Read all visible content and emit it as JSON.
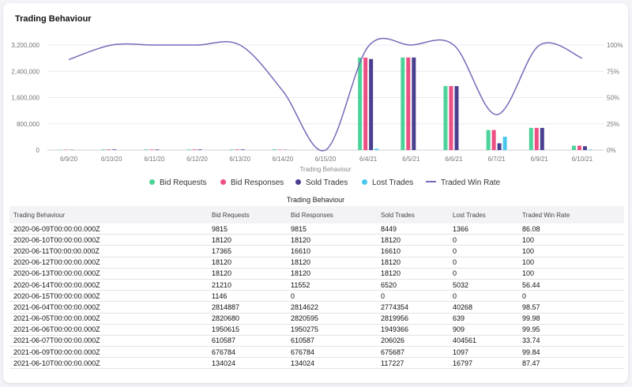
{
  "card": {
    "title": "Trading Behaviour"
  },
  "chart_data": {
    "type": "bar",
    "categories": [
      "6/9/20",
      "6/10/20",
      "6/11/20",
      "6/12/20",
      "6/13/20",
      "6/14/20",
      "6/15/20",
      "6/4/21",
      "6/5/21",
      "6/6/21",
      "6/7/21",
      "6/9/21",
      "6/10/21"
    ],
    "xlabel": "Trading Behaviour",
    "ylim": [
      0,
      3200000
    ],
    "y_ticks": [
      "0",
      "800,000",
      "1,600,000",
      "2,400,000",
      "3,200,000"
    ],
    "y2lim": [
      0,
      100
    ],
    "y2_ticks": [
      "0%",
      "25%",
      "50%",
      "75%",
      "100%"
    ],
    "series": [
      {
        "name": "Bid Requests",
        "type": "bar",
        "axis": "left",
        "color": "#4cd39a",
        "values": [
          9815,
          18120,
          17365,
          18120,
          18120,
          21210,
          1146,
          2814887,
          2820680,
          1950615,
          610587,
          676784,
          134024
        ]
      },
      {
        "name": "Bid Responses",
        "type": "bar",
        "axis": "left",
        "color": "#ec4f83",
        "values": [
          9815,
          18120,
          16610,
          18120,
          18120,
          11552,
          0,
          2814622,
          2820595,
          1950275,
          610587,
          676784,
          134024
        ]
      },
      {
        "name": "Sold Trades",
        "type": "bar",
        "axis": "left",
        "color": "#4a3f8f",
        "values": [
          8449,
          18120,
          16610,
          18120,
          18120,
          6520,
          0,
          2774354,
          2819956,
          1949366,
          206026,
          675687,
          117227
        ]
      },
      {
        "name": "Lost Trades",
        "type": "bar",
        "axis": "left",
        "color": "#49c7ec",
        "values": [
          1366,
          0,
          0,
          0,
          0,
          5032,
          0,
          40268,
          639,
          909,
          404561,
          1097,
          16797
        ]
      },
      {
        "name": "Traded Win Rate",
        "type": "line",
        "axis": "right",
        "color": "#7a68b8",
        "values": [
          86.08,
          100,
          100,
          100,
          100,
          56.44,
          0,
          98.57,
          99.98,
          99.95,
          33.74,
          99.84,
          87.47
        ]
      }
    ],
    "grid": true,
    "legend_position": "bottom"
  },
  "table": {
    "title": "Trading Behaviour",
    "headers": [
      "Trading Behaviour",
      "Bid Requests",
      "Bid Responses",
      "Sold Trades",
      "Lost Trades",
      "Traded Win Rate"
    ],
    "rows": [
      [
        "2020-06-09T00:00:00.000Z",
        "9815",
        "9815",
        "8449",
        "1366",
        "86.08"
      ],
      [
        "2020-06-10T00:00:00.000Z",
        "18120",
        "18120",
        "18120",
        "0",
        "100"
      ],
      [
        "2020-06-11T00:00:00.000Z",
        "17365",
        "16610",
        "16610",
        "0",
        "100"
      ],
      [
        "2020-06-12T00:00:00.000Z",
        "18120",
        "18120",
        "18120",
        "0",
        "100"
      ],
      [
        "2020-06-13T00:00:00.000Z",
        "18120",
        "18120",
        "18120",
        "0",
        "100"
      ],
      [
        "2020-06-14T00:00:00.000Z",
        "21210",
        "11552",
        "6520",
        "5032",
        "56.44"
      ],
      [
        "2020-06-15T00:00:00.000Z",
        "1146",
        "0",
        "0",
        "0",
        "0"
      ],
      [
        "2021-06-04T00:00:00.000Z",
        "2814887",
        "2814622",
        "2774354",
        "40268",
        "98.57"
      ],
      [
        "2021-06-05T00:00:00.000Z",
        "2820680",
        "2820595",
        "2819956",
        "639",
        "99.98"
      ],
      [
        "2021-06-06T00:00:00.000Z",
        "1950615",
        "1950275",
        "1949366",
        "909",
        "99.95"
      ],
      [
        "2021-06-07T00:00:00.000Z",
        "610587",
        "610587",
        "206026",
        "404561",
        "33.74"
      ],
      [
        "2021-06-09T00:00:00.000Z",
        "676784",
        "676784",
        "675687",
        "1097",
        "99.84"
      ],
      [
        "2021-06-10T00:00:00.000Z",
        "134024",
        "134024",
        "117227",
        "16797",
        "87.47"
      ]
    ]
  }
}
